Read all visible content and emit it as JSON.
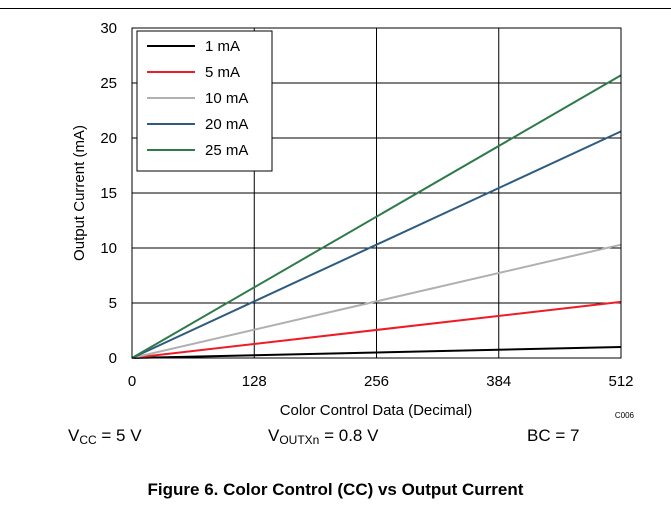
{
  "chart_data": {
    "type": "line",
    "x": [
      0,
      512
    ],
    "series": [
      {
        "name": "1 mA",
        "color": "#000000",
        "values": [
          0,
          1
        ]
      },
      {
        "name": "5 mA",
        "color": "#ee1c25",
        "values": [
          0,
          5.1
        ]
      },
      {
        "name": "10 mA",
        "color": "#b0b0b0",
        "values": [
          0,
          10.3
        ]
      },
      {
        "name": "20 mA",
        "color": "#2e5c80",
        "values": [
          0,
          20.6
        ]
      },
      {
        "name": "25 mA",
        "color": "#2f7a4a",
        "values": [
          0,
          25.7
        ]
      }
    ],
    "xlabel": "Color Control Data (Decimal)",
    "ylabel": "Output Current (mA)",
    "xlim": [
      0,
      512
    ],
    "ylim": [
      0,
      30
    ],
    "xticks": [
      "0",
      "128",
      "256",
      "384",
      "512"
    ],
    "yticks": [
      "0",
      "5",
      "10",
      "15",
      "20",
      "25",
      "30"
    ],
    "grid": true,
    "legend_position": "top-left",
    "code": "C006"
  },
  "conditions": {
    "vcc": {
      "main": "V",
      "sub": "CC",
      "rest": " = 5 V"
    },
    "voutxn": {
      "main": "V",
      "sub": "OUTXn",
      "rest": " = 0.8 V"
    },
    "bc": "BC = 7"
  },
  "caption": "Figure 6. Color Control (CC) vs Output Current"
}
